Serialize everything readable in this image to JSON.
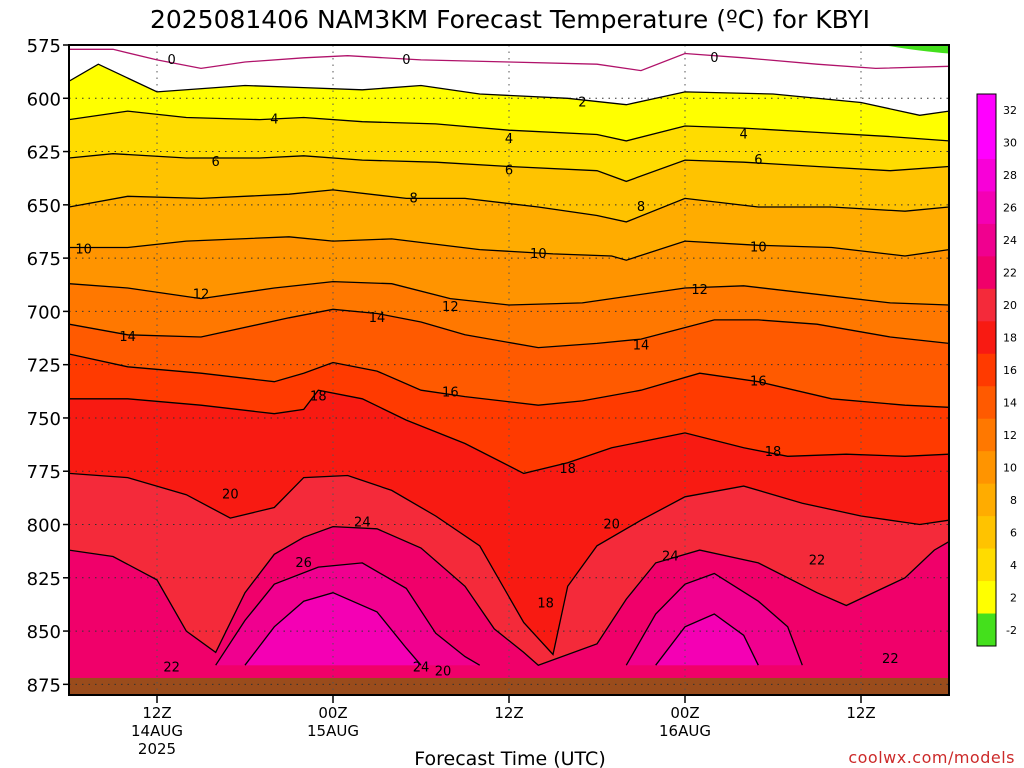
{
  "chart_data": {
    "type": "contour",
    "title": "2025081406 NAM3KM Forecast Temperature (ºC) for KBYI",
    "xlabel": "Forecast Time (UTC)",
    "ylabel": "",
    "y_axis": {
      "label": "",
      "ticks": [
        575,
        600,
        625,
        650,
        675,
        700,
        725,
        750,
        775,
        800,
        825,
        850,
        875
      ],
      "range": [
        575,
        880
      ],
      "inverted": true
    },
    "x_axis": {
      "range_hours": [
        0,
        60
      ],
      "ticks": [
        {
          "hour": 6,
          "line1": "12Z",
          "line2": "14AUG",
          "line3": "2025"
        },
        {
          "hour": 18,
          "line1": "00Z",
          "line2": "15AUG",
          "line3": ""
        },
        {
          "hour": 30,
          "line1": "12Z",
          "line2": "",
          "line3": ""
        },
        {
          "hour": 42,
          "line1": "00Z",
          "line2": "16AUG",
          "line3": ""
        },
        {
          "hour": 54,
          "line1": "12Z",
          "line2": "",
          "line3": ""
        }
      ]
    },
    "grid": "dotted",
    "colorbar": {
      "labels": [
        "32",
        "30",
        "28",
        "26",
        "24",
        "22",
        "20",
        "18",
        "16",
        "14",
        "12",
        "10",
        "8",
        "6",
        "4",
        "2",
        "-2"
      ],
      "bands": [
        {
          "lo": 30,
          "color": "#ff00ff"
        },
        {
          "lo": 28,
          "color": "#f800d8"
        },
        {
          "lo": 26,
          "color": "#f400b4"
        },
        {
          "lo": 24,
          "color": "#f0008f"
        },
        {
          "lo": 22,
          "color": "#f0006a"
        },
        {
          "lo": 20,
          "color": "#f42a3a"
        },
        {
          "lo": 18,
          "color": "#f81a12"
        },
        {
          "lo": 16,
          "color": "#ff3a00"
        },
        {
          "lo": 14,
          "color": "#ff5a00"
        },
        {
          "lo": 12,
          "color": "#ff7800"
        },
        {
          "lo": 10,
          "color": "#ff9400"
        },
        {
          "lo": 8,
          "color": "#ffac00"
        },
        {
          "lo": 6,
          "color": "#ffc300"
        },
        {
          "lo": 4,
          "color": "#ffdc00"
        },
        {
          "lo": 2,
          "color": "#ffff00"
        },
        {
          "lo": 0,
          "color": "#ffffff"
        },
        {
          "lo": -2,
          "color": "#44e01c"
        }
      ]
    },
    "contours": [
      {
        "value": 0,
        "points": [
          [
            0,
            577
          ],
          [
            3,
            577
          ],
          [
            6,
            582
          ],
          [
            9,
            586
          ],
          [
            12,
            583
          ],
          [
            16,
            581
          ],
          [
            19,
            580
          ],
          [
            24,
            582
          ],
          [
            30,
            583
          ],
          [
            36,
            584
          ],
          [
            39,
            587
          ],
          [
            42,
            579
          ],
          [
            46,
            581
          ],
          [
            51,
            584
          ],
          [
            55,
            586
          ],
          [
            60,
            585
          ]
        ]
      },
      {
        "value": 2,
        "points": [
          [
            0,
            592
          ],
          [
            2,
            584
          ],
          [
            6,
            597
          ],
          [
            12,
            594
          ],
          [
            16,
            595
          ],
          [
            20,
            596
          ],
          [
            24,
            594
          ],
          [
            28,
            598
          ],
          [
            34,
            600
          ],
          [
            38,
            603
          ],
          [
            42,
            597
          ],
          [
            48,
            598
          ],
          [
            54,
            602
          ],
          [
            58,
            608
          ],
          [
            60,
            606
          ]
        ]
      },
      {
        "value": 4,
        "points": [
          [
            0,
            610
          ],
          [
            4,
            606
          ],
          [
            8,
            609
          ],
          [
            13,
            610
          ],
          [
            16,
            609
          ],
          [
            20,
            611
          ],
          [
            25,
            612
          ],
          [
            30,
            615
          ],
          [
            36,
            617
          ],
          [
            38,
            620
          ],
          [
            42,
            613
          ],
          [
            46,
            614
          ],
          [
            51,
            616
          ],
          [
            56,
            618
          ],
          [
            60,
            620
          ]
        ]
      },
      {
        "value": 6,
        "points": [
          [
            0,
            628
          ],
          [
            3,
            626
          ],
          [
            8,
            628
          ],
          [
            13,
            628
          ],
          [
            16,
            627
          ],
          [
            20,
            629
          ],
          [
            25,
            630
          ],
          [
            30,
            632
          ],
          [
            36,
            634
          ],
          [
            38,
            639
          ],
          [
            42,
            629
          ],
          [
            46,
            630
          ],
          [
            51,
            632
          ],
          [
            56,
            634
          ],
          [
            60,
            632
          ]
        ]
      },
      {
        "value": 8,
        "points": [
          [
            0,
            651
          ],
          [
            4,
            646
          ],
          [
            9,
            647
          ],
          [
            15,
            645
          ],
          [
            18,
            643
          ],
          [
            23,
            647
          ],
          [
            27,
            647
          ],
          [
            32,
            651
          ],
          [
            36,
            655
          ],
          [
            38,
            658
          ],
          [
            42,
            647
          ],
          [
            47,
            651
          ],
          [
            52,
            651
          ],
          [
            57,
            653
          ],
          [
            60,
            651
          ]
        ]
      },
      {
        "value": 10,
        "points": [
          [
            0,
            670
          ],
          [
            4,
            670
          ],
          [
            8,
            667
          ],
          [
            15,
            665
          ],
          [
            18,
            667
          ],
          [
            22,
            666
          ],
          [
            28,
            671
          ],
          [
            33,
            673
          ],
          [
            37,
            674
          ],
          [
            38,
            676
          ],
          [
            42,
            667
          ],
          [
            47,
            669
          ],
          [
            52,
            670
          ],
          [
            57,
            674
          ],
          [
            60,
            671
          ]
        ]
      },
      {
        "value": 12,
        "points": [
          [
            0,
            687
          ],
          [
            4,
            689
          ],
          [
            9,
            694
          ],
          [
            14,
            689
          ],
          [
            18,
            686
          ],
          [
            22,
            687
          ],
          [
            26,
            694
          ],
          [
            30,
            697
          ],
          [
            35,
            696
          ],
          [
            38,
            693
          ],
          [
            42,
            689
          ],
          [
            46,
            688
          ],
          [
            51,
            692
          ],
          [
            56,
            696
          ],
          [
            60,
            697
          ]
        ]
      },
      {
        "value": 14,
        "points": [
          [
            0,
            706
          ],
          [
            4,
            711
          ],
          [
            9,
            712
          ],
          [
            15,
            703
          ],
          [
            18,
            699
          ],
          [
            21,
            701
          ],
          [
            24,
            705
          ],
          [
            27,
            711
          ],
          [
            32,
            717
          ],
          [
            36,
            715
          ],
          [
            39,
            713
          ],
          [
            44,
            704
          ],
          [
            47,
            704
          ],
          [
            51,
            706
          ],
          [
            56,
            712
          ],
          [
            60,
            715
          ]
        ]
      },
      {
        "value": 16,
        "points": [
          [
            0,
            720
          ],
          [
            4,
            726
          ],
          [
            9,
            729
          ],
          [
            14,
            733
          ],
          [
            16,
            729
          ],
          [
            18,
            724
          ],
          [
            21,
            728
          ],
          [
            24,
            737
          ],
          [
            27,
            740
          ],
          [
            32,
            744
          ],
          [
            35,
            742
          ],
          [
            39,
            737
          ],
          [
            43,
            729
          ],
          [
            47,
            733
          ],
          [
            52,
            741
          ],
          [
            57,
            744
          ],
          [
            60,
            745
          ]
        ]
      },
      {
        "value": 18,
        "points": [
          [
            0,
            741
          ],
          [
            4,
            741
          ],
          [
            9,
            744
          ],
          [
            14,
            748
          ],
          [
            16,
            746
          ],
          [
            17,
            737
          ],
          [
            20,
            741
          ],
          [
            23,
            751
          ],
          [
            27,
            762
          ],
          [
            31,
            776
          ],
          [
            34,
            771
          ],
          [
            37,
            764
          ],
          [
            42,
            757
          ],
          [
            46,
            764
          ],
          [
            49,
            768
          ],
          [
            53,
            767
          ],
          [
            57,
            768
          ],
          [
            60,
            767
          ]
        ]
      },
      {
        "value": 20,
        "points": [
          [
            0,
            776
          ],
          [
            4,
            778
          ],
          [
            8,
            786
          ],
          [
            11,
            797
          ],
          [
            14,
            792
          ],
          [
            16,
            778
          ],
          [
            19,
            777
          ],
          [
            22,
            784
          ],
          [
            25,
            796
          ],
          [
            28,
            810
          ],
          [
            31,
            846
          ],
          [
            33,
            861
          ],
          [
            34,
            829
          ],
          [
            36,
            810
          ],
          [
            39,
            798
          ],
          [
            42,
            787
          ],
          [
            46,
            782
          ],
          [
            50,
            790
          ],
          [
            54,
            796
          ],
          [
            58,
            800
          ],
          [
            60,
            798
          ]
        ]
      },
      {
        "value": 22,
        "points": [
          [
            0,
            812
          ],
          [
            3,
            815
          ],
          [
            6,
            826
          ],
          [
            8,
            850
          ],
          [
            10,
            860
          ],
          [
            12,
            832
          ],
          [
            14,
            814
          ],
          [
            16,
            806
          ],
          [
            18,
            801
          ],
          [
            21,
            802
          ],
          [
            24,
            811
          ],
          [
            27,
            829
          ],
          [
            29,
            849
          ],
          [
            31,
            860
          ],
          [
            32,
            866
          ],
          [
            36,
            856
          ],
          [
            38,
            835
          ],
          [
            40,
            818
          ],
          [
            43,
            812
          ],
          [
            47,
            818
          ],
          [
            51,
            832
          ],
          [
            53,
            838
          ],
          [
            57,
            825
          ],
          [
            59,
            812
          ],
          [
            60,
            808
          ]
        ]
      },
      {
        "value": 24,
        "points": [
          [
            10,
            866
          ],
          [
            12,
            845
          ],
          [
            14,
            828
          ],
          [
            17,
            820
          ],
          [
            20,
            818
          ],
          [
            23,
            830
          ],
          [
            25,
            851
          ],
          [
            27,
            862
          ],
          [
            28,
            866
          ]
        ]
      },
      {
        "value": 24,
        "points": [
          [
            38,
            866
          ],
          [
            40,
            842
          ],
          [
            42,
            828
          ],
          [
            44,
            823
          ],
          [
            47,
            836
          ],
          [
            49,
            848
          ],
          [
            50,
            866
          ]
        ]
      },
      {
        "value": 26,
        "points": [
          [
            12,
            866
          ],
          [
            14,
            848
          ],
          [
            16,
            836
          ],
          [
            18,
            832
          ],
          [
            21,
            841
          ],
          [
            23,
            858
          ],
          [
            24,
            866
          ]
        ]
      },
      {
        "value": 26,
        "points": [
          [
            40,
            866
          ],
          [
            42,
            848
          ],
          [
            44,
            842
          ],
          [
            46,
            852
          ],
          [
            47,
            866
          ]
        ]
      }
    ],
    "contour_labels": [
      {
        "text": "0",
        "h": 7,
        "p": 582
      },
      {
        "text": "0",
        "h": 23,
        "p": 582
      },
      {
        "text": "0",
        "h": 44,
        "p": 581
      },
      {
        "text": "2",
        "h": 35,
        "p": 602
      },
      {
        "text": "4",
        "h": 14,
        "p": 610
      },
      {
        "text": "4",
        "h": 30,
        "p": 619
      },
      {
        "text": "4",
        "h": 46,
        "p": 617
      },
      {
        "text": "6",
        "h": 10,
        "p": 630
      },
      {
        "text": "6",
        "h": 30,
        "p": 634
      },
      {
        "text": "6",
        "h": 47,
        "p": 629
      },
      {
        "text": "8",
        "h": 23.5,
        "p": 647
      },
      {
        "text": "8",
        "h": 39,
        "p": 651
      },
      {
        "text": "10",
        "h": 1,
        "p": 671
      },
      {
        "text": "10",
        "h": 32,
        "p": 673
      },
      {
        "text": "10",
        "h": 47,
        "p": 670
      },
      {
        "text": "12",
        "h": 9,
        "p": 692
      },
      {
        "text": "12",
        "h": 26,
        "p": 698
      },
      {
        "text": "12",
        "h": 43,
        "p": 690
      },
      {
        "text": "14",
        "h": 4,
        "p": 712
      },
      {
        "text": "14",
        "h": 21,
        "p": 703
      },
      {
        "text": "14",
        "h": 39,
        "p": 716
      },
      {
        "text": "16",
        "h": 26,
        "p": 738
      },
      {
        "text": "16",
        "h": 47,
        "p": 733
      },
      {
        "text": "18",
        "h": 17,
        "p": 740
      },
      {
        "text": "18",
        "h": 34,
        "p": 774
      },
      {
        "text": "18",
        "h": 48,
        "p": 766
      },
      {
        "text": "18",
        "h": 32.5,
        "p": 837
      },
      {
        "text": "20",
        "h": 11,
        "p": 786
      },
      {
        "text": "20",
        "h": 37,
        "p": 800
      },
      {
        "text": "20",
        "h": 25.5,
        "p": 869
      },
      {
        "text": "22",
        "h": 51,
        "p": 817
      },
      {
        "text": "22",
        "h": 7,
        "p": 867
      },
      {
        "text": "22",
        "h": 56,
        "p": 863
      },
      {
        "text": "24",
        "h": 20,
        "p": 799
      },
      {
        "text": "24",
        "h": 41,
        "p": 815
      },
      {
        "text": "24",
        "h": 24,
        "p": 867
      },
      {
        "text": "26",
        "h": 16,
        "p": 818
      }
    ],
    "surface": {
      "from_pressure": 872,
      "to_pressure": 880,
      "color": "#9a4c1c"
    },
    "cold_patch": {
      "from_h": 55.5,
      "to_h": 60,
      "color": "#44e01c"
    }
  },
  "credit": "coolwx.com/models"
}
